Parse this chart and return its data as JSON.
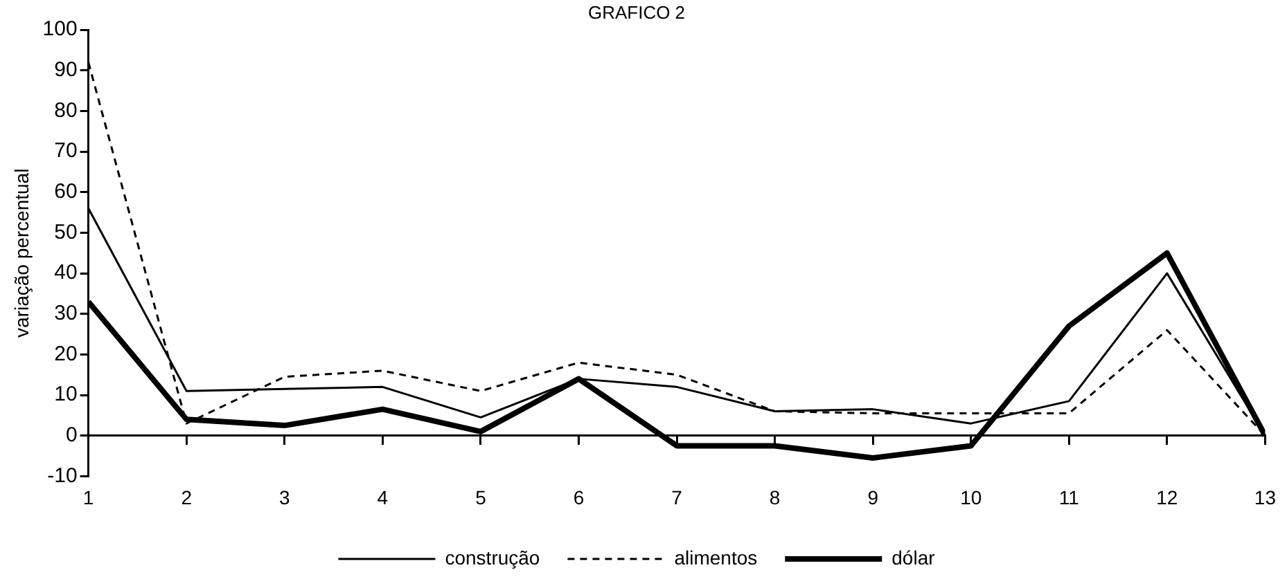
{
  "chart_data": {
    "type": "line",
    "title": "GRAFICO 2",
    "ylabel": "variação percentual",
    "x": [
      1,
      2,
      3,
      4,
      5,
      6,
      7,
      8,
      9,
      10,
      11,
      12,
      13
    ],
    "xlim": [
      1,
      13
    ],
    "xticks": [
      1,
      2,
      3,
      4,
      5,
      6,
      7,
      8,
      9,
      10,
      11,
      12,
      13
    ],
    "ylim": [
      -10,
      100
    ],
    "yticks": [
      -10,
      0,
      10,
      20,
      30,
      40,
      50,
      60,
      70,
      80,
      90,
      100
    ],
    "legend": "bottom",
    "marker": "none",
    "series": [
      {
        "name": "construção",
        "color": "#000000",
        "line_style": "solid",
        "values": [
          56,
          11,
          11.5,
          12,
          4.5,
          14,
          12,
          6,
          6.5,
          3,
          8.5,
          40,
          0
        ]
      },
      {
        "name": "alimentos",
        "color": "#000000",
        "line_style": "dashed",
        "values": [
          92,
          3,
          14.5,
          16,
          11,
          18,
          15,
          6,
          5.5,
          5.5,
          5.5,
          26,
          0
        ]
      },
      {
        "name": "dólar",
        "color": "#000000",
        "line_style": "solid",
        "values": [
          33,
          4,
          2.5,
          6.5,
          1,
          14,
          -2.5,
          -2.5,
          -5.5,
          -2.5,
          27,
          45,
          0
        ]
      }
    ]
  }
}
